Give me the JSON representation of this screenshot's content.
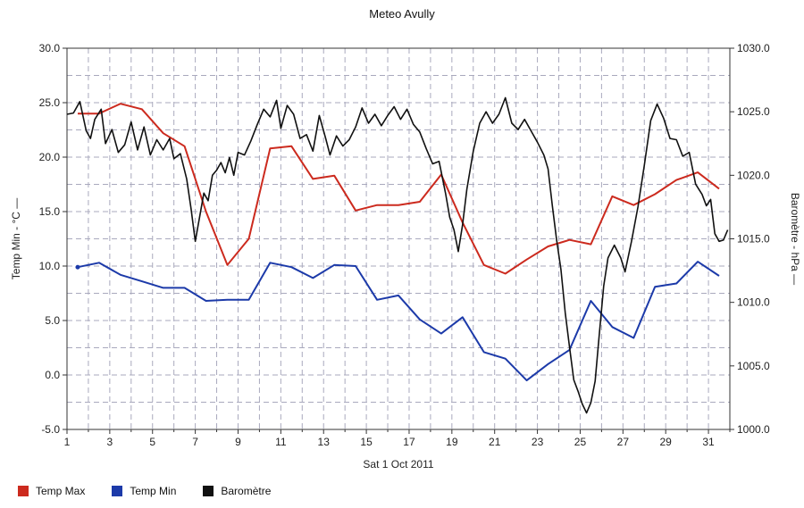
{
  "chart_data": {
    "type": "line",
    "title": "Meteo  Avully",
    "xlabel": "Sat 1 Oct 2011",
    "ylabel_left": "Temp Min - °C",
    "ylabel_right": "Baromètre - hPa",
    "x_ticks": [
      "1",
      "3",
      "5",
      "7",
      "9",
      "11",
      "13",
      "15",
      "17",
      "19",
      "21",
      "23",
      "25",
      "27",
      "29",
      "31"
    ],
    "x_range": [
      1,
      32
    ],
    "y_left_ticks": [
      "30.0",
      "25.0",
      "20.0",
      "15.0",
      "10.0",
      "5.0",
      "0.0",
      "-5.0"
    ],
    "y_left_range": [
      -5,
      30
    ],
    "y_right_ticks": [
      "1030.0",
      "1025.0",
      "1020.0",
      "1015.0",
      "1010.0",
      "1005.0",
      "1000.0"
    ],
    "y_right_range": [
      1000,
      1030
    ],
    "grid": true,
    "legend_position": "bottom",
    "series": [
      {
        "name": "Temp Max",
        "color": "#cc2a1e",
        "axis": "left",
        "points": [
          [
            1.5,
            24.0
          ],
          [
            2.5,
            24.0
          ],
          [
            3.5,
            24.9
          ],
          [
            4.5,
            24.4
          ],
          [
            5.5,
            22.2
          ],
          [
            6.5,
            21.0
          ],
          [
            7.5,
            15.0
          ],
          [
            8.5,
            10.1
          ],
          [
            9.5,
            12.5
          ],
          [
            10.5,
            20.8
          ],
          [
            11.5,
            21.0
          ],
          [
            12.5,
            18.0
          ],
          [
            13.5,
            18.3
          ],
          [
            14.5,
            15.1
          ],
          [
            15.5,
            15.6
          ],
          [
            16.5,
            15.6
          ],
          [
            17.5,
            15.9
          ],
          [
            18.5,
            18.4
          ],
          [
            19.5,
            14.0
          ],
          [
            20.5,
            10.1
          ],
          [
            21.5,
            9.3
          ],
          [
            22.5,
            10.6
          ],
          [
            23.5,
            11.8
          ],
          [
            24.5,
            12.4
          ],
          [
            25.5,
            12.0
          ],
          [
            26.5,
            16.4
          ],
          [
            27.5,
            15.6
          ],
          [
            28.5,
            16.6
          ],
          [
            29.5,
            17.9
          ],
          [
            30.5,
            18.6
          ],
          [
            31.5,
            17.1
          ]
        ]
      },
      {
        "name": "Temp Min",
        "color": "#1c3aa9",
        "axis": "left",
        "points": [
          [
            1.5,
            9.9
          ],
          [
            2.5,
            10.3
          ],
          [
            3.5,
            9.2
          ],
          [
            4.5,
            8.6
          ],
          [
            5.5,
            8.0
          ],
          [
            6.5,
            8.0
          ],
          [
            7.5,
            6.8
          ],
          [
            8.5,
            6.9
          ],
          [
            9.5,
            6.9
          ],
          [
            10.5,
            10.3
          ],
          [
            11.5,
            9.9
          ],
          [
            12.5,
            8.9
          ],
          [
            13.5,
            10.1
          ],
          [
            14.5,
            10.0
          ],
          [
            15.5,
            6.9
          ],
          [
            16.5,
            7.3
          ],
          [
            17.5,
            5.1
          ],
          [
            18.5,
            3.8
          ],
          [
            19.5,
            5.3
          ],
          [
            20.5,
            2.1
          ],
          [
            21.5,
            1.5
          ],
          [
            22.5,
            -0.5
          ],
          [
            23.5,
            1.0
          ],
          [
            24.5,
            2.3
          ],
          [
            25.5,
            6.8
          ],
          [
            26.5,
            4.4
          ],
          [
            27.5,
            3.4
          ],
          [
            28.5,
            8.1
          ],
          [
            29.5,
            8.4
          ],
          [
            30.5,
            10.4
          ],
          [
            31.5,
            9.1
          ]
        ]
      },
      {
        "name": "Baromètre",
        "color": "#111111",
        "axis": "right",
        "points": [
          [
            1.0,
            1024.8
          ],
          [
            1.3,
            1024.9
          ],
          [
            1.6,
            1025.8
          ],
          [
            1.9,
            1023.5
          ],
          [
            2.1,
            1022.9
          ],
          [
            2.3,
            1024.4
          ],
          [
            2.6,
            1025.2
          ],
          [
            2.8,
            1022.5
          ],
          [
            3.1,
            1023.6
          ],
          [
            3.4,
            1021.8
          ],
          [
            3.7,
            1022.4
          ],
          [
            4.0,
            1024.2
          ],
          [
            4.3,
            1022.0
          ],
          [
            4.6,
            1023.8
          ],
          [
            4.9,
            1021.6
          ],
          [
            5.2,
            1022.8
          ],
          [
            5.5,
            1022.0
          ],
          [
            5.8,
            1022.9
          ],
          [
            6.0,
            1021.3
          ],
          [
            6.3,
            1021.7
          ],
          [
            6.6,
            1019.7
          ],
          [
            6.8,
            1017.4
          ],
          [
            7.0,
            1014.8
          ],
          [
            7.2,
            1016.7
          ],
          [
            7.4,
            1018.6
          ],
          [
            7.6,
            1018.0
          ],
          [
            7.8,
            1020.0
          ],
          [
            8.0,
            1020.4
          ],
          [
            8.2,
            1021.0
          ],
          [
            8.4,
            1020.2
          ],
          [
            8.6,
            1021.4
          ],
          [
            8.8,
            1020.0
          ],
          [
            9.0,
            1021.8
          ],
          [
            9.3,
            1021.6
          ],
          [
            9.6,
            1022.7
          ],
          [
            9.9,
            1024.0
          ],
          [
            10.2,
            1025.2
          ],
          [
            10.5,
            1024.6
          ],
          [
            10.8,
            1025.9
          ],
          [
            11.0,
            1023.7
          ],
          [
            11.3,
            1025.5
          ],
          [
            11.6,
            1024.8
          ],
          [
            11.9,
            1022.9
          ],
          [
            12.2,
            1023.2
          ],
          [
            12.5,
            1021.9
          ],
          [
            12.8,
            1024.7
          ],
          [
            13.1,
            1022.9
          ],
          [
            13.3,
            1021.6
          ],
          [
            13.6,
            1023.1
          ],
          [
            13.9,
            1022.3
          ],
          [
            14.2,
            1022.8
          ],
          [
            14.5,
            1023.8
          ],
          [
            14.8,
            1025.3
          ],
          [
            15.1,
            1024.1
          ],
          [
            15.4,
            1024.8
          ],
          [
            15.7,
            1023.9
          ],
          [
            16.0,
            1024.7
          ],
          [
            16.3,
            1025.4
          ],
          [
            16.6,
            1024.4
          ],
          [
            16.9,
            1025.2
          ],
          [
            17.2,
            1024.0
          ],
          [
            17.5,
            1023.4
          ],
          [
            17.8,
            1022.1
          ],
          [
            18.1,
            1020.9
          ],
          [
            18.4,
            1021.1
          ],
          [
            18.7,
            1018.6
          ],
          [
            18.9,
            1016.7
          ],
          [
            19.1,
            1015.7
          ],
          [
            19.3,
            1014.0
          ],
          [
            19.5,
            1016.1
          ],
          [
            19.7,
            1018.9
          ],
          [
            20.0,
            1021.9
          ],
          [
            20.3,
            1024.1
          ],
          [
            20.6,
            1025.0
          ],
          [
            20.9,
            1024.1
          ],
          [
            21.2,
            1024.8
          ],
          [
            21.5,
            1026.1
          ],
          [
            21.8,
            1024.1
          ],
          [
            22.1,
            1023.6
          ],
          [
            22.4,
            1024.4
          ],
          [
            22.7,
            1023.5
          ],
          [
            23.0,
            1022.6
          ],
          [
            23.3,
            1021.6
          ],
          [
            23.5,
            1020.5
          ],
          [
            23.7,
            1017.6
          ],
          [
            23.9,
            1014.9
          ],
          [
            24.1,
            1012.6
          ],
          [
            24.3,
            1009.2
          ],
          [
            24.5,
            1006.5
          ],
          [
            24.7,
            1003.9
          ],
          [
            24.9,
            1003.0
          ],
          [
            25.1,
            1002.0
          ],
          [
            25.3,
            1001.3
          ],
          [
            25.5,
            1002.1
          ],
          [
            25.7,
            1003.8
          ],
          [
            25.9,
            1007.6
          ],
          [
            26.1,
            1011.3
          ],
          [
            26.3,
            1013.5
          ],
          [
            26.6,
            1014.5
          ],
          [
            26.9,
            1013.5
          ],
          [
            27.1,
            1012.4
          ],
          [
            27.4,
            1014.8
          ],
          [
            27.7,
            1017.5
          ],
          [
            28.0,
            1020.8
          ],
          [
            28.3,
            1024.3
          ],
          [
            28.6,
            1025.6
          ],
          [
            28.9,
            1024.5
          ],
          [
            29.2,
            1022.9
          ],
          [
            29.5,
            1022.8
          ],
          [
            29.8,
            1021.5
          ],
          [
            30.1,
            1021.8
          ],
          [
            30.4,
            1019.3
          ],
          [
            30.7,
            1018.5
          ],
          [
            30.9,
            1017.6
          ],
          [
            31.1,
            1018.1
          ],
          [
            31.3,
            1015.4
          ],
          [
            31.5,
            1014.8
          ],
          [
            31.7,
            1014.9
          ],
          [
            31.9,
            1015.7
          ]
        ]
      }
    ]
  },
  "legend": [
    {
      "label": "Temp Max",
      "color": "#cc2a1e"
    },
    {
      "label": "Temp Min",
      "color": "#1c3aa9"
    },
    {
      "label": "Baromètre",
      "color": "#111111"
    }
  ]
}
